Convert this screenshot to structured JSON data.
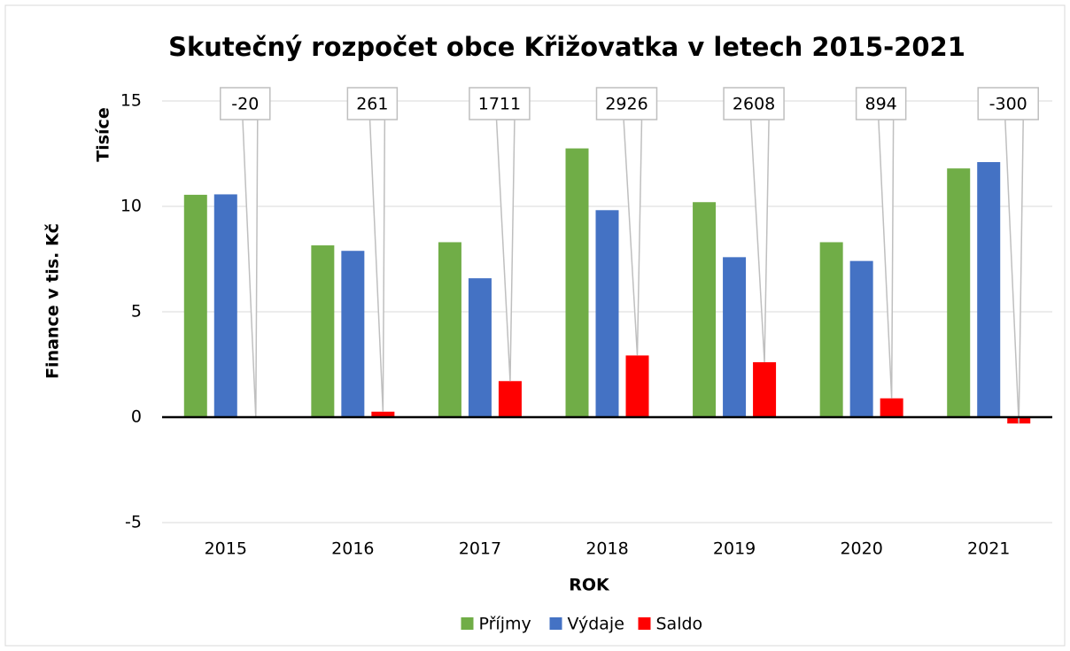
{
  "chart_data": {
    "type": "bar",
    "title": "Skutečný rozpočet obce Křižovatka v letech 2015-2021",
    "y_axis_label": "Finance v tis. Kč",
    "y_display_unit": "Tisíce",
    "x_axis_label": "ROK",
    "categories": [
      "2015",
      "2016",
      "2017",
      "2018",
      "2019",
      "2020",
      "2021"
    ],
    "series": [
      {
        "name": "Příjmy",
        "color": "#70ad47",
        "values": [
          10.55,
          8.15,
          8.3,
          12.75,
          10.2,
          8.3,
          11.8
        ]
      },
      {
        "name": "Výdaje",
        "color": "#4472c4",
        "values": [
          10.57,
          7.89,
          6.59,
          9.82,
          7.59,
          7.41,
          12.1
        ]
      },
      {
        "name": "Saldo",
        "color": "#ff0000",
        "values": [
          -0.02,
          0.261,
          1.711,
          2.926,
          2.608,
          0.894,
          -0.3
        ],
        "value_labels": [
          "-20",
          "261",
          "1711",
          "2926",
          "2608",
          "894",
          "-300"
        ]
      }
    ],
    "ylim": [
      -5,
      15
    ],
    "yticks": [
      -5,
      0,
      5,
      10,
      15
    ],
    "grid": true,
    "legend": "bottom"
  }
}
